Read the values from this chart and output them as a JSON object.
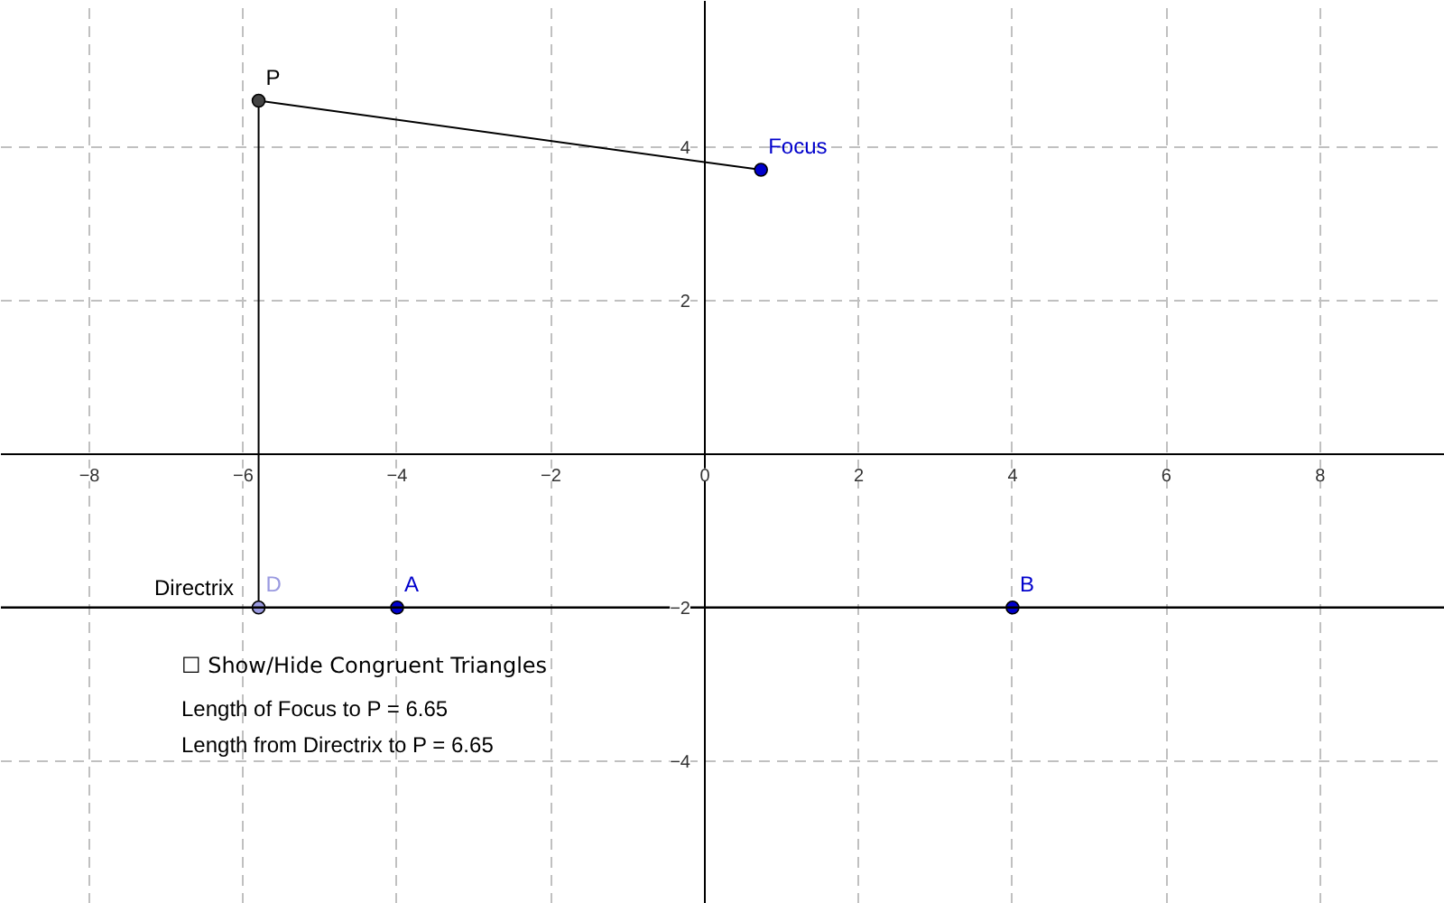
{
  "chart_data": {
    "type": "scatter",
    "xlim": [
      -9.15,
      9.62
    ],
    "ylim": [
      -5.86,
      5.9
    ],
    "xticks": [
      {
        "value": -8,
        "label": "−8"
      },
      {
        "value": -6,
        "label": "−6"
      },
      {
        "value": -4,
        "label": "−4"
      },
      {
        "value": -2,
        "label": "−2"
      },
      0,
      2,
      4,
      6,
      8
    ],
    "yticks": [
      {
        "value": -4,
        "label": "−4"
      },
      {
        "value": -2,
        "label": "−2"
      },
      2,
      4
    ],
    "grid": true,
    "marker": "circle",
    "ref_lines": [
      {
        "axis": "y",
        "value": -2,
        "label": "Directrix",
        "color": "#000000"
      }
    ],
    "series": [
      {
        "type": "line",
        "marker": "none",
        "x": [
          -5.8,
          0.73
        ],
        "values": [
          4.6,
          3.7
        ],
        "color": "#000000"
      },
      {
        "type": "line",
        "marker": "none",
        "x": [
          -5.8,
          -5.8
        ],
        "values": [
          4.6,
          -2
        ],
        "color": "#000000"
      },
      {
        "name": "P",
        "x": [
          -5.8
        ],
        "values": [
          4.6
        ],
        "color": "#444444"
      },
      {
        "name": "Focus",
        "x": [
          0.73
        ],
        "values": [
          3.7
        ],
        "color": "#0000cc"
      },
      {
        "name": "D",
        "x": [
          -5.8
        ],
        "values": [
          -2
        ],
        "color": "#9a9ae0"
      },
      {
        "name": "A",
        "x": [
          -4
        ],
        "values": [
          -2
        ],
        "color": "#0000cc"
      },
      {
        "name": "B",
        "x": [
          4
        ],
        "values": [
          -2
        ],
        "color": "#0000cc"
      }
    ],
    "annotations": [
      "☐ Show/Hide Congruent Triangles",
      "Length of Focus to P = 6.65",
      "Length from Directrix to P = 6.65"
    ]
  }
}
